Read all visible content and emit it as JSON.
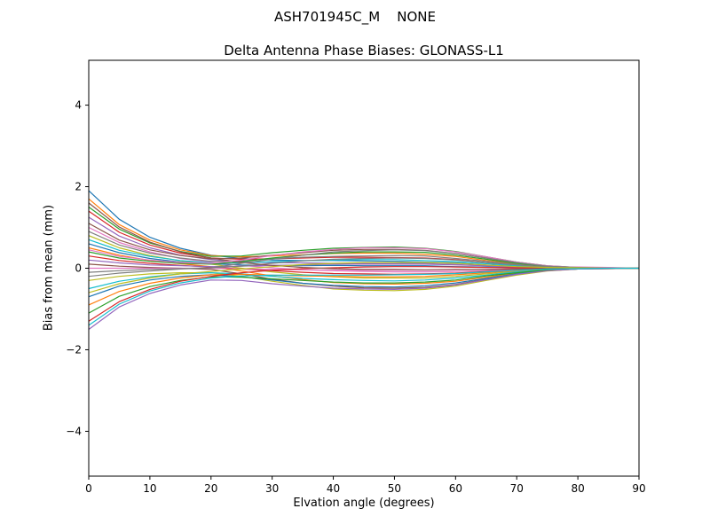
{
  "suptitle": "ASH701945C_M    NONE",
  "colors": {
    "background": "#ffffff",
    "axes": "#000000"
  },
  "chart_data": {
    "type": "line",
    "title": "Delta Antenna Phase Biases: GLONASS-L1",
    "xlabel": "Elvation angle (degrees)",
    "ylabel": "Bias from mean (mm)",
    "xlim": [
      0,
      90
    ],
    "ylim": [
      -5.1,
      5.1
    ],
    "xticks": [
      0,
      10,
      20,
      30,
      40,
      50,
      60,
      70,
      80,
      90
    ],
    "xticklabels": [
      "0",
      "10",
      "20",
      "30",
      "40",
      "50",
      "60",
      "70",
      "80",
      "90"
    ],
    "yticks": [
      -4,
      -2,
      0,
      2,
      4
    ],
    "yticklabels": [
      "−4",
      "−2",
      "0",
      "2",
      "4"
    ],
    "grid": false,
    "legend": "none",
    "x": [
      0,
      5,
      10,
      15,
      20,
      25,
      30,
      35,
      40,
      45,
      50,
      55,
      60,
      65,
      70,
      75,
      80,
      85,
      90
    ],
    "series": [
      {
        "name": "line-01",
        "color": "#1f77b4",
        "y": [
          1.9,
          1.2,
          0.76,
          0.49,
          0.32,
          0.24,
          0.2,
          0.19,
          0.19,
          0.18,
          0.17,
          0.15,
          0.13,
          0.08,
          0.05,
          0.02,
          0.01,
          0.0,
          0.0
        ]
      },
      {
        "name": "line-02",
        "color": "#ff7f0e",
        "y": [
          1.7,
          1.07,
          0.69,
          0.45,
          0.31,
          0.28,
          0.3,
          0.33,
          0.36,
          0.37,
          0.37,
          0.34,
          0.29,
          0.19,
          0.11,
          0.04,
          0.01,
          0.0,
          0.0
        ]
      },
      {
        "name": "line-03",
        "color": "#2ca02c",
        "y": [
          1.5,
          0.96,
          0.62,
          0.41,
          0.29,
          0.3,
          0.38,
          0.44,
          0.49,
          0.51,
          0.52,
          0.49,
          0.41,
          0.28,
          0.15,
          0.06,
          0.02,
          0.01,
          0.0
        ]
      },
      {
        "name": "line-04",
        "color": "#d62728",
        "y": [
          1.4,
          0.88,
          0.57,
          0.37,
          0.25,
          0.22,
          0.23,
          0.25,
          0.27,
          0.27,
          0.26,
          0.25,
          0.21,
          0.14,
          0.08,
          0.03,
          0.01,
          0.0,
          0.0
        ]
      },
      {
        "name": "line-05",
        "color": "#9467bd",
        "y": [
          1.25,
          0.79,
          0.5,
          0.32,
          0.21,
          0.16,
          0.14,
          0.13,
          0.12,
          0.12,
          0.11,
          0.11,
          0.09,
          0.06,
          0.03,
          0.01,
          0.0,
          0.0,
          0.0
        ]
      },
      {
        "name": "line-06",
        "color": "#8c564b",
        "y": [
          1.1,
          0.69,
          0.45,
          0.31,
          0.23,
          0.25,
          0.32,
          0.38,
          0.44,
          0.46,
          0.46,
          0.44,
          0.36,
          0.25,
          0.14,
          0.05,
          0.02,
          0.0,
          0.0
        ]
      },
      {
        "name": "line-07",
        "color": "#e377c2",
        "y": [
          1.0,
          0.63,
          0.4,
          0.24,
          0.15,
          0.07,
          0.01,
          -0.04,
          -0.06,
          -0.08,
          -0.09,
          -0.09,
          -0.08,
          -0.06,
          -0.03,
          -0.01,
          0.0,
          0.0,
          0.0
        ]
      },
      {
        "name": "line-08",
        "color": "#7f7f7f",
        "y": [
          0.9,
          0.57,
          0.37,
          0.25,
          0.17,
          0.18,
          0.23,
          0.27,
          0.29,
          0.3,
          0.31,
          0.3,
          0.24,
          0.17,
          0.09,
          0.04,
          0.01,
          0.0,
          0.0
        ]
      },
      {
        "name": "line-09",
        "color": "#bcbd22",
        "y": [
          0.8,
          0.5,
          0.31,
          0.18,
          0.1,
          0.0,
          -0.09,
          -0.16,
          -0.21,
          -0.24,
          -0.24,
          -0.24,
          -0.2,
          -0.14,
          -0.08,
          -0.03,
          -0.01,
          0.0,
          0.0
        ]
      },
      {
        "name": "line-10",
        "color": "#17becf",
        "y": [
          0.7,
          0.44,
          0.29,
          0.19,
          0.13,
          0.13,
          0.16,
          0.18,
          0.2,
          0.21,
          0.21,
          0.19,
          0.16,
          0.11,
          0.06,
          0.02,
          0.01,
          0.0,
          0.0
        ]
      },
      {
        "name": "line-11",
        "color": "#1f77b4",
        "y": [
          0.6,
          0.38,
          0.24,
          0.15,
          0.11,
          0.08,
          0.07,
          0.06,
          0.07,
          0.06,
          0.06,
          0.06,
          0.04,
          0.03,
          0.02,
          0.01,
          0.0,
          0.0,
          0.0
        ]
      },
      {
        "name": "line-12",
        "color": "#ff7f0e",
        "y": [
          0.5,
          0.32,
          0.19,
          0.11,
          0.04,
          -0.07,
          -0.19,
          -0.28,
          -0.35,
          -0.38,
          -0.39,
          -0.37,
          -0.32,
          -0.22,
          -0.12,
          -0.05,
          -0.02,
          0.0,
          0.0
        ]
      },
      {
        "name": "line-13",
        "color": "#2ca02c",
        "y": [
          0.4,
          0.25,
          0.17,
          0.12,
          0.1,
          0.16,
          0.25,
          0.32,
          0.37,
          0.4,
          0.4,
          0.39,
          0.32,
          0.22,
          0.12,
          0.05,
          0.02,
          0.0,
          0.0
        ]
      },
      {
        "name": "line-14",
        "color": "#d62728",
        "y": [
          0.3,
          0.19,
          0.12,
          0.07,
          0.03,
          -0.02,
          -0.06,
          -0.1,
          -0.13,
          -0.14,
          -0.15,
          -0.14,
          -0.12,
          -0.08,
          -0.05,
          -0.02,
          -0.01,
          0.0,
          0.0
        ]
      },
      {
        "name": "line-15",
        "color": "#9467bd",
        "y": [
          0.2,
          0.13,
          0.08,
          0.06,
          0.04,
          0.05,
          0.07,
          0.08,
          0.1,
          0.1,
          0.1,
          0.1,
          0.08,
          0.06,
          0.03,
          0.01,
          0.0,
          0.0,
          0.0
        ]
      },
      {
        "name": "line-16",
        "color": "#8c564b",
        "y": [
          0.1,
          0.05,
          0.02,
          0.0,
          -0.03,
          -0.14,
          -0.27,
          -0.37,
          -0.44,
          -0.48,
          -0.49,
          -0.47,
          -0.4,
          -0.27,
          -0.15,
          -0.06,
          -0.02,
          -0.01,
          0.0
        ]
      },
      {
        "name": "line-17",
        "color": "#e377c2",
        "y": [
          0.0,
          0.0,
          0.0,
          0.0,
          0.0,
          -0.02,
          -0.03,
          -0.04,
          -0.05,
          -0.05,
          -0.05,
          -0.05,
          -0.04,
          -0.03,
          -0.01,
          0.02,
          0.03,
          0.02,
          0.0
        ]
      },
      {
        "name": "line-18",
        "color": "#7f7f7f",
        "y": [
          -0.1,
          -0.06,
          -0.03,
          -0.01,
          0.01,
          0.05,
          0.12,
          0.18,
          0.22,
          0.24,
          0.25,
          0.24,
          0.2,
          0.14,
          0.08,
          0.03,
          0.01,
          0.0,
          0.0
        ]
      },
      {
        "name": "line-19",
        "color": "#bcbd22",
        "y": [
          -0.3,
          -0.2,
          -0.14,
          -0.11,
          -0.11,
          -0.2,
          -0.32,
          -0.42,
          -0.51,
          -0.54,
          -0.55,
          -0.52,
          -0.44,
          -0.3,
          -0.17,
          -0.07,
          -0.02,
          -0.01,
          0.0
        ]
      },
      {
        "name": "line-20",
        "color": "#17becf",
        "y": [
          -0.5,
          -0.32,
          -0.21,
          -0.14,
          -0.11,
          -0.14,
          -0.2,
          -0.25,
          -0.28,
          -0.3,
          -0.31,
          -0.29,
          -0.24,
          -0.17,
          -0.09,
          -0.04,
          -0.01,
          0.0,
          0.0
        ]
      },
      {
        "name": "line-21",
        "color": "#1f77b4",
        "y": [
          -0.7,
          -0.44,
          -0.29,
          -0.2,
          -0.16,
          -0.21,
          -0.29,
          -0.37,
          -0.42,
          -0.45,
          -0.46,
          -0.43,
          -0.36,
          -0.25,
          -0.14,
          -0.05,
          -0.02,
          0.0,
          0.0
        ]
      },
      {
        "name": "line-22",
        "color": "#ff7f0e",
        "y": [
          -0.9,
          -0.57,
          -0.37,
          -0.24,
          -0.16,
          -0.15,
          -0.17,
          -0.19,
          -0.2,
          -0.21,
          -0.21,
          -0.2,
          -0.16,
          -0.11,
          -0.06,
          -0.02,
          -0.01,
          0.0,
          0.0
        ]
      },
      {
        "name": "line-23",
        "color": "#2ca02c",
        "y": [
          -1.1,
          -0.69,
          -0.45,
          -0.3,
          -0.21,
          -0.22,
          -0.26,
          -0.3,
          -0.34,
          -0.36,
          -0.36,
          -0.34,
          -0.29,
          -0.19,
          -0.11,
          -0.04,
          -0.01,
          0.0,
          0.0
        ]
      },
      {
        "name": "line-24",
        "color": "#d62728",
        "y": [
          -1.3,
          -0.82,
          -0.52,
          -0.32,
          -0.2,
          -0.11,
          -0.05,
          -0.01,
          0.01,
          0.03,
          0.04,
          0.04,
          0.03,
          0.02,
          0.01,
          0.01,
          0.0,
          0.0,
          0.0
        ]
      },
      {
        "name": "line-25",
        "color": "#9467bd",
        "y": [
          -1.5,
          -0.95,
          -0.62,
          -0.41,
          -0.29,
          -0.3,
          -0.38,
          -0.44,
          -0.49,
          -0.51,
          -0.52,
          -0.49,
          -0.41,
          -0.28,
          -0.15,
          -0.06,
          -0.02,
          -0.01,
          0.0
        ]
      },
      {
        "name": "line-26",
        "color": "#8c564b",
        "y": [
          1.6,
          1.01,
          0.64,
          0.4,
          0.25,
          0.14,
          0.07,
          0.02,
          -0.01,
          -0.03,
          -0.03,
          -0.04,
          -0.03,
          -0.03,
          -0.02,
          -0.01,
          0.0,
          0.0,
          0.0
        ]
      },
      {
        "name": "line-27",
        "color": "#e377c2",
        "y": [
          0.45,
          0.29,
          0.2,
          0.14,
          0.12,
          0.2,
          0.31,
          0.4,
          0.46,
          0.5,
          0.5,
          0.48,
          0.4,
          0.28,
          0.15,
          0.06,
          0.02,
          0.01,
          0.0
        ]
      },
      {
        "name": "line-28",
        "color": "#7f7f7f",
        "y": [
          -0.2,
          -0.12,
          -0.07,
          -0.02,
          0.01,
          0.12,
          0.22,
          0.32,
          0.4,
          0.43,
          0.45,
          0.43,
          0.36,
          0.25,
          0.14,
          0.05,
          0.02,
          0.0,
          0.0
        ]
      },
      {
        "name": "line-29",
        "color": "#bcbd22",
        "y": [
          -0.6,
          -0.38,
          -0.24,
          -0.14,
          -0.08,
          -0.02,
          0.04,
          0.09,
          0.12,
          0.14,
          0.14,
          0.14,
          0.12,
          0.08,
          0.04,
          0.02,
          0.01,
          0.0,
          0.0
        ]
      },
      {
        "name": "line-30",
        "color": "#17becf",
        "y": [
          -1.4,
          -0.88,
          -0.56,
          -0.36,
          -0.24,
          -0.19,
          -0.17,
          -0.17,
          -0.17,
          -0.17,
          -0.16,
          -0.15,
          -0.13,
          -0.09,
          -0.05,
          -0.02,
          -0.01,
          0.0,
          0.0
        ]
      }
    ]
  }
}
